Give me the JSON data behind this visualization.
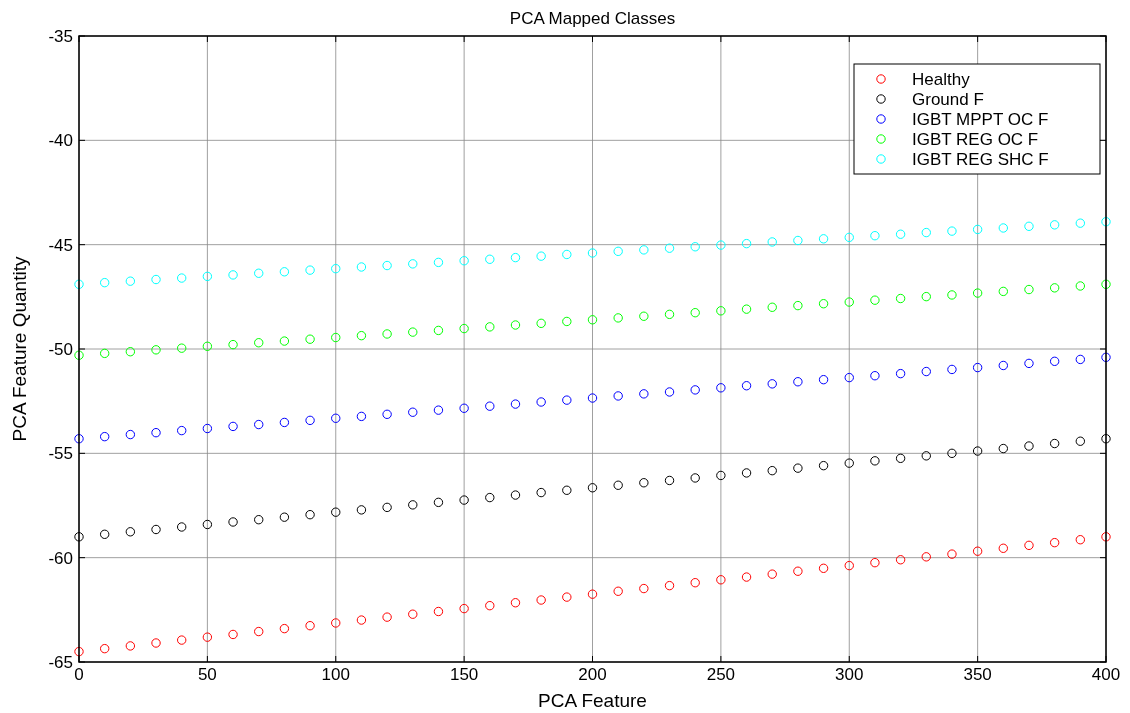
{
  "chart_data": {
    "type": "scatter",
    "title": "PCA Mapped Classes",
    "xlabel": "PCA Feature",
    "ylabel": "PCA Feature Quantity",
    "x": [
      0,
      10,
      20,
      30,
      40,
      50,
      60,
      70,
      80,
      90,
      100,
      110,
      120,
      130,
      140,
      150,
      160,
      170,
      180,
      190,
      200,
      210,
      220,
      230,
      240,
      250,
      260,
      270,
      280,
      290,
      300,
      310,
      320,
      330,
      340,
      350,
      360,
      370,
      380,
      390,
      400
    ],
    "series": [
      {
        "name": "Healthy",
        "color": "#ff0000",
        "values": [
          -64.5,
          -64.36,
          -64.23,
          -64.09,
          -63.95,
          -63.81,
          -63.68,
          -63.54,
          -63.4,
          -63.26,
          -63.13,
          -62.99,
          -62.85,
          -62.71,
          -62.58,
          -62.44,
          -62.3,
          -62.16,
          -62.03,
          -61.89,
          -61.75,
          -61.61,
          -61.48,
          -61.34,
          -61.2,
          -61.06,
          -60.93,
          -60.79,
          -60.65,
          -60.51,
          -60.38,
          -60.24,
          -60.1,
          -59.96,
          -59.83,
          -59.69,
          -59.55,
          -59.41,
          -59.28,
          -59.14,
          -59.0
        ]
      },
      {
        "name": "Ground F",
        "color": "#000000",
        "values": [
          -59,
          -58.88,
          -58.76,
          -58.65,
          -58.53,
          -58.41,
          -58.29,
          -58.18,
          -58.06,
          -57.94,
          -57.82,
          -57.71,
          -57.59,
          -57.47,
          -57.35,
          -57.24,
          -57.12,
          -57,
          -56.88,
          -56.77,
          -56.65,
          -56.53,
          -56.41,
          -56.3,
          -56.18,
          -56.06,
          -55.94,
          -55.83,
          -55.71,
          -55.59,
          -55.47,
          -55.36,
          -55.24,
          -55.12,
          -55,
          -54.89,
          -54.77,
          -54.65,
          -54.53,
          -54.42,
          -54.3
        ]
      },
      {
        "name": "IGBT MPPT OC F",
        "color": "#0000ff",
        "values": [
          -54.3,
          -54.2,
          -54.1,
          -54.01,
          -53.91,
          -53.81,
          -53.71,
          -53.62,
          -53.52,
          -53.42,
          -53.32,
          -53.23,
          -53.13,
          -53.03,
          -52.93,
          -52.84,
          -52.74,
          -52.64,
          -52.54,
          -52.45,
          -52.35,
          -52.25,
          -52.15,
          -52.06,
          -51.96,
          -51.86,
          -51.76,
          -51.67,
          -51.57,
          -51.47,
          -51.37,
          -51.28,
          -51.18,
          -51.08,
          -50.98,
          -50.89,
          -50.79,
          -50.69,
          -50.59,
          -50.5,
          -50.4
        ]
      },
      {
        "name": "IGBT REG OC F",
        "color": "#00ff00",
        "values": [
          -50.3,
          -50.21,
          -50.13,
          -50.04,
          -49.96,
          -49.87,
          -49.79,
          -49.7,
          -49.62,
          -49.53,
          -49.45,
          -49.36,
          -49.28,
          -49.19,
          -49.11,
          -49.02,
          -48.94,
          -48.85,
          -48.77,
          -48.68,
          -48.6,
          -48.51,
          -48.43,
          -48.34,
          -48.26,
          -48.17,
          -48.09,
          -48,
          -47.92,
          -47.83,
          -47.75,
          -47.66,
          -47.58,
          -47.49,
          -47.41,
          -47.32,
          -47.24,
          -47.15,
          -47.07,
          -46.98,
          -46.9
        ]
      },
      {
        "name": "IGBT REG SHC F",
        "color": "#00ffff",
        "values": [
          -46.9,
          -46.82,
          -46.75,
          -46.67,
          -46.6,
          -46.52,
          -46.45,
          -46.37,
          -46.3,
          -46.22,
          -46.15,
          -46.07,
          -46,
          -45.92,
          -45.85,
          -45.77,
          -45.7,
          -45.62,
          -45.55,
          -45.47,
          -45.4,
          -45.32,
          -45.25,
          -45.17,
          -45.1,
          -45.02,
          -44.95,
          -44.87,
          -44.8,
          -44.72,
          -44.65,
          -44.57,
          -44.5,
          -44.42,
          -44.35,
          -44.27,
          -44.2,
          -44.12,
          -44.05,
          -43.97,
          -43.9
        ]
      }
    ],
    "xlim": [
      0,
      400
    ],
    "xticks": [
      0,
      50,
      100,
      150,
      200,
      250,
      300,
      350,
      400
    ],
    "ylim": [
      -65,
      -35
    ],
    "yticks": [
      -65,
      -60,
      -55,
      -50,
      -45,
      -40,
      -35
    ],
    "grid": true,
    "legend": "top right",
    "marker": "circle"
  }
}
